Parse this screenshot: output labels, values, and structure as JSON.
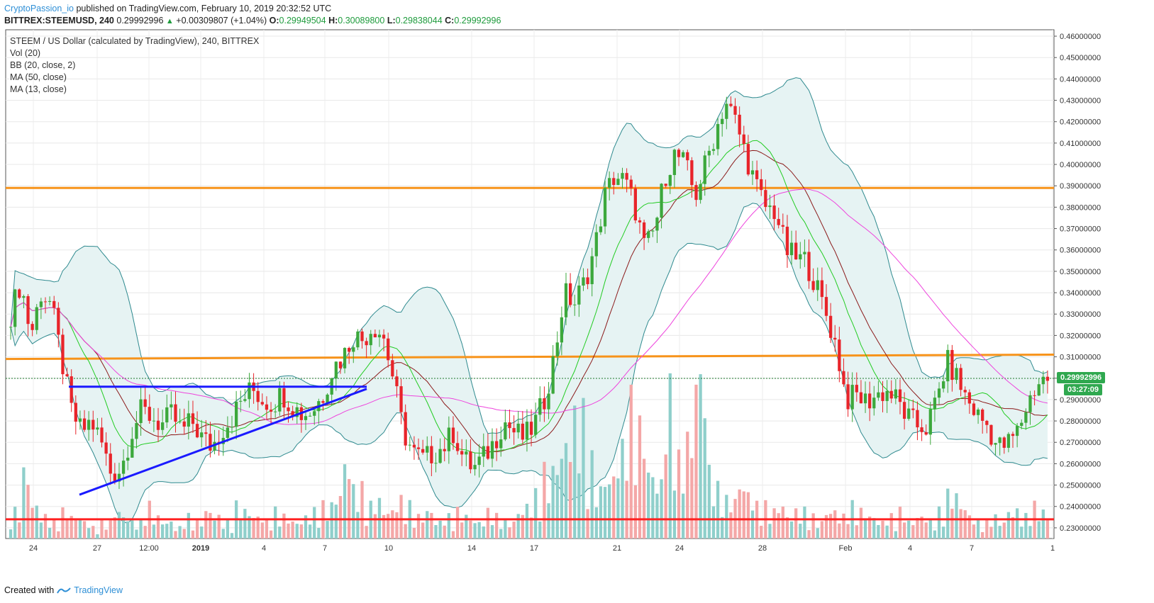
{
  "header": {
    "author": "CryptoPassion_io",
    "published": "published on TradingView.com, February 10, 2019 20:32:52 UTC",
    "symbol": "BITTREX:STEEMUSD, 240",
    "last": "0.29992996",
    "change_arrow": "▲",
    "change": "+0.00309807 (+1.04%)",
    "o_label": "O:",
    "o": "0.29949504",
    "h_label": "H:",
    "h": "0.30089800",
    "l_label": "L:",
    "l": "0.29838044",
    "c_label": "C:",
    "c": "0.29992996"
  },
  "legend": {
    "title": "STEEM / US Dollar (calculated by TradingView), 240, BITTREX",
    "vol": "Vol (20)",
    "bb": "BB (20, close, 2)",
    "ma50": "MA (50, close)",
    "ma13": "MA (13, close)"
  },
  "price_tag": {
    "value": "0.29992996",
    "countdown": "03:27:09"
  },
  "footer": {
    "prefix": "Created with",
    "brand": "TradingView"
  },
  "colors": {
    "up": "#3ca83c",
    "down": "#e8242a",
    "bb": "#2f8a8f",
    "bb_fill": "#e6f3f3",
    "ma13": "#22cc22",
    "ma50": "#ee44dd",
    "basis": "#8b1a1a",
    "orange": "#f7931a",
    "red_line": "#ff2020",
    "trend": "#1a1aff",
    "vol_up": "#8fcfcb",
    "vol_down": "#f4a7a7"
  },
  "chart_data": {
    "type": "candlestick",
    "y_axis_ticks": [
      "0.46000000",
      "0.45000000",
      "0.44000000",
      "0.43000000",
      "0.42000000",
      "0.41000000",
      "0.40000000",
      "0.39000000",
      "0.38000000",
      "0.37000000",
      "0.36000000",
      "0.35000000",
      "0.34000000",
      "0.33000000",
      "0.32000000",
      "0.31000000",
      "0.30000000",
      "0.29000000",
      "0.28000000",
      "0.27000000",
      "0.26000000",
      "0.25000000",
      "0.24000000",
      "0.23000000"
    ],
    "x_axis_ticks": [
      "24",
      "27",
      "12:00",
      "2019",
      "4",
      "7",
      "10",
      "14",
      "17",
      "21",
      "24",
      "28",
      "Feb",
      "4",
      "7",
      "1"
    ],
    "ylim": [
      0.225,
      0.463
    ],
    "horizontal_levels": [
      0.389,
      0.31,
      0.234
    ],
    "last_price": 0.29993,
    "close_path": [
      0.33,
      0.345,
      0.32,
      0.34,
      0.335,
      0.31,
      0.285,
      0.275,
      0.28,
      0.27,
      0.255,
      0.258,
      0.275,
      0.285,
      0.282,
      0.278,
      0.283,
      0.275,
      0.28,
      0.272,
      0.268,
      0.276,
      0.282,
      0.29,
      0.295,
      0.29,
      0.288,
      0.293,
      0.287,
      0.283,
      0.285,
      0.292,
      0.305,
      0.31,
      0.32,
      0.318,
      0.325,
      0.32,
      0.3,
      0.275,
      0.265,
      0.262,
      0.265,
      0.268,
      0.275,
      0.262,
      0.258,
      0.263,
      0.27,
      0.28,
      0.275,
      0.272,
      0.278,
      0.29,
      0.31,
      0.34,
      0.335,
      0.345,
      0.36,
      0.385,
      0.395,
      0.392,
      0.38,
      0.36,
      0.37,
      0.395,
      0.405,
      0.4,
      0.385,
      0.4,
      0.415,
      0.43,
      0.42,
      0.405,
      0.39,
      0.38,
      0.378,
      0.36,
      0.356,
      0.355,
      0.343,
      0.33,
      0.315,
      0.29,
      0.292,
      0.289,
      0.292,
      0.294,
      0.29,
      0.282,
      0.278,
      0.277,
      0.29,
      0.308,
      0.3,
      0.29,
      0.283,
      0.278,
      0.268,
      0.269,
      0.275,
      0.288,
      0.298,
      0.3
    ],
    "volume_path": [
      0.05,
      0.12,
      0.06,
      0.04,
      0.03,
      0.05,
      0.04,
      0.03,
      0.02,
      0.03,
      0.05,
      0.04,
      0.03,
      0.06,
      0.04,
      0.03,
      0.02,
      0.04,
      0.03,
      0.05,
      0.04,
      0.03,
      0.06,
      0.05,
      0.04,
      0.03,
      0.05,
      0.04,
      0.03,
      0.04,
      0.05,
      0.06,
      0.08,
      0.14,
      0.09,
      0.06,
      0.07,
      0.05,
      0.07,
      0.06,
      0.04,
      0.05,
      0.03,
      0.04,
      0.05,
      0.04,
      0.03,
      0.05,
      0.04,
      0.03,
      0.05,
      0.06,
      0.08,
      0.12,
      0.15,
      0.18,
      0.22,
      0.14,
      0.09,
      0.11,
      0.16,
      0.24,
      0.2,
      0.12,
      0.1,
      0.26,
      0.14,
      0.18,
      0.3,
      0.12,
      0.09,
      0.07,
      0.1,
      0.08,
      0.06,
      0.05,
      0.06,
      0.04,
      0.05,
      0.04,
      0.03,
      0.05,
      0.04,
      0.06,
      0.05,
      0.04,
      0.03,
      0.04,
      0.05,
      0.03,
      0.04,
      0.03,
      0.05,
      0.08,
      0.06,
      0.04,
      0.03,
      0.04,
      0.03,
      0.05,
      0.04,
      0.06,
      0.05,
      0.04
    ]
  }
}
